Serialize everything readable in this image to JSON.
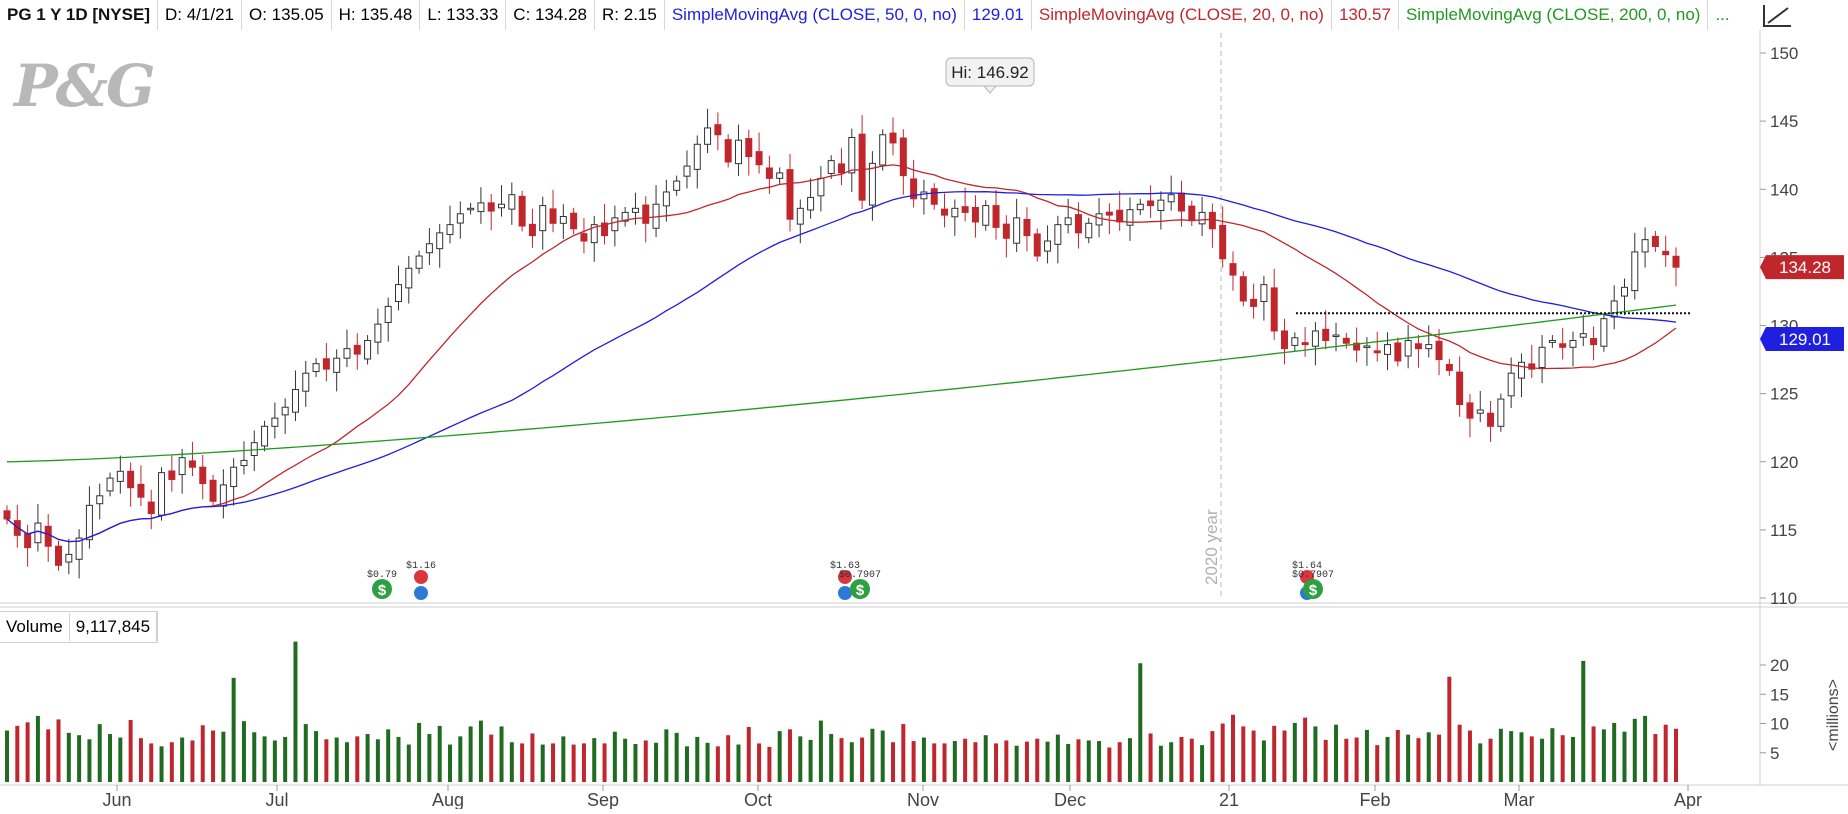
{
  "header": {
    "symbol": "PG 1 Y 1D [NYSE]",
    "date": "D: 4/1/21",
    "open": "O: 135.05",
    "high": "H: 135.48",
    "low": "L: 133.33",
    "close": "C: 134.28",
    "range": "R: 2.15",
    "sma50_label": "SimpleMovingAvg (CLOSE, 50, 0, no)",
    "sma50_value": "129.01",
    "sma20_label": "SimpleMovingAvg (CLOSE, 20, 0, no)",
    "sma20_value": "130.57",
    "sma200_label": "SimpleMovingAvg (CLOSE, 200, 0, no)",
    "sma200_value": "...",
    "more": "..."
  },
  "logo_text": "P&G",
  "volume_header": {
    "label": "Volume",
    "value": "9,117,845"
  },
  "colors": {
    "up": "#1f6b1f",
    "down": "#c0272d",
    "sma50": "#1f1fe0",
    "sma20": "#c0272d",
    "sma200": "#1f9a1f",
    "price_tag": "#c0272d",
    "sma_tag": "#1f1fe0"
  },
  "chart_data": {
    "type": "candlestick",
    "price_axis": {
      "ticks": [
        110,
        115,
        120,
        125,
        130,
        135,
        140,
        145,
        150
      ],
      "ylim": [
        110,
        150
      ]
    },
    "volume_axis": {
      "ticks": [
        5,
        10,
        15,
        20
      ],
      "ylim": [
        0,
        25
      ],
      "unit_label": "<millions>"
    },
    "x_tick_labels": [
      "Jun",
      "Jul",
      "Aug",
      "Sep",
      "Oct",
      "Nov",
      "Dec",
      "21",
      "Feb",
      "Mar",
      "Apr"
    ],
    "year_marker": "2020 year",
    "high_annotation": "Hi: 146.92",
    "last_price": "134.28",
    "last_sma": "129.01",
    "support_level": 130.9,
    "dividend_markers": [
      "$0.79",
      "$1.16",
      "$1.63",
      "$0.7907",
      "$1.64",
      "$0.7907"
    ],
    "series_close": [
      115.8,
      114.6,
      113.7,
      115.5,
      113.8,
      112.4,
      113.2,
      114.4,
      116.8,
      117.5,
      118.8,
      119.3,
      118.1,
      117.4,
      116.2,
      119.2,
      118.7,
      120.3,
      119.6,
      118.4,
      117.1,
      118.3,
      119.6,
      120.1,
      121.4,
      122.6,
      123.2,
      124.0,
      125.3,
      126.5,
      127.2,
      126.8,
      127.6,
      128.3,
      127.9,
      128.9,
      130.1,
      131.4,
      133.0,
      134.2,
      135.1,
      136.0,
      136.8,
      137.4,
      138.2,
      138.6,
      139.0,
      138.4,
      138.9,
      139.6,
      137.3,
      136.6,
      138.8,
      137.5,
      138.0,
      137.1,
      136.2,
      137.4,
      136.6,
      137.9,
      138.3,
      138.6,
      137.5,
      138.9,
      139.8,
      140.6,
      141.7,
      143.3,
      144.5,
      144.0,
      142.0,
      143.6,
      142.4,
      141.8,
      140.8,
      141.2,
      137.8,
      138.6,
      139.4,
      140.8,
      142.1,
      141.2,
      143.8,
      139.2,
      141.9,
      144.0,
      143.4,
      141.0,
      139.3,
      139.8,
      138.9,
      138.1,
      138.6,
      138.3,
      137.6,
      138.8,
      137.2,
      136.4,
      137.9,
      136.6,
      135.1,
      136.2,
      137.4,
      137.9,
      136.8,
      137.5,
      138.2,
      138.1,
      137.6,
      138.5,
      138.9,
      138.8,
      139.2,
      139.6,
      138.4,
      137.7,
      138.3,
      137.1,
      134.9,
      133.7,
      131.8,
      131.4,
      133.0,
      129.6,
      128.3,
      129.1,
      128.6,
      129.6,
      128.9,
      129.3,
      128.7,
      128.2,
      128.5,
      128.0,
      128.6,
      127.4,
      128.9,
      128.3,
      128.6,
      127.5,
      126.7,
      124.2,
      123.2,
      123.8,
      122.6,
      124.6,
      126.5,
      127.3,
      126.8,
      128.4,
      128.9,
      128.4,
      128.9,
      129.4,
      128.6,
      130.5,
      131.8,
      132.8,
      135.4,
      136.3,
      135.8,
      135.2,
      134.28
    ],
    "series_volume": [
      8.8,
      9.6,
      10.2,
      11.3,
      9.0,
      10.7,
      8.4,
      8.0,
      7.3,
      9.9,
      8.2,
      7.6,
      10.6,
      7.5,
      6.6,
      6.1,
      6.8,
      7.6,
      7.1,
      9.7,
      8.8,
      8.6,
      17.8,
      10.4,
      8.5,
      7.8,
      7.1,
      7.7,
      24.0,
      9.9,
      8.7,
      7.3,
      7.6,
      6.8,
      7.8,
      8.2,
      7.3,
      9.0,
      7.7,
      6.4,
      10.1,
      8.2,
      9.6,
      6.4,
      7.8,
      9.5,
      10.5,
      8.1,
      9.5,
      6.8,
      6.6,
      8.3,
      6.4,
      6.6,
      7.8,
      6.4,
      6.6,
      7.5,
      6.6,
      8.6,
      7.4,
      6.5,
      7.1,
      6.7,
      9.0,
      8.4,
      6.1,
      7.7,
      6.7,
      6.1,
      8.0,
      6.4,
      9.4,
      6.6,
      6.0,
      8.7,
      9.0,
      7.8,
      7.2,
      10.5,
      8.2,
      7.5,
      6.8,
      7.6,
      9.1,
      8.8,
      6.8,
      9.9,
      7.0,
      7.6,
      6.6,
      6.6,
      7.0,
      7.4,
      6.8,
      8.0,
      6.6,
      7.1,
      6.2,
      6.9,
      7.4,
      6.9,
      8.1,
      6.5,
      7.3,
      7.1,
      7.0,
      5.9,
      6.8,
      7.5,
      20.3,
      8.3,
      6.2,
      6.8,
      7.7,
      7.4,
      6.3,
      8.7,
      10.0,
      11.5,
      9.5,
      8.8,
      7.1,
      9.6,
      8.8,
      10.1,
      11.0,
      9.5,
      7.2,
      9.8,
      7.4,
      7.6,
      8.9,
      6.3,
      7.7,
      8.9,
      8.1,
      7.5,
      8.5,
      8.1,
      18.0,
      9.8,
      8.8,
      6.6,
      7.4,
      9.1,
      8.7,
      8.5,
      7.8,
      7.4,
      9.2,
      8.0,
      7.7,
      20.7,
      9.5,
      9.0,
      10.1,
      8.6,
      10.8,
      11.3,
      8.2,
      9.8,
      9.1
    ]
  }
}
